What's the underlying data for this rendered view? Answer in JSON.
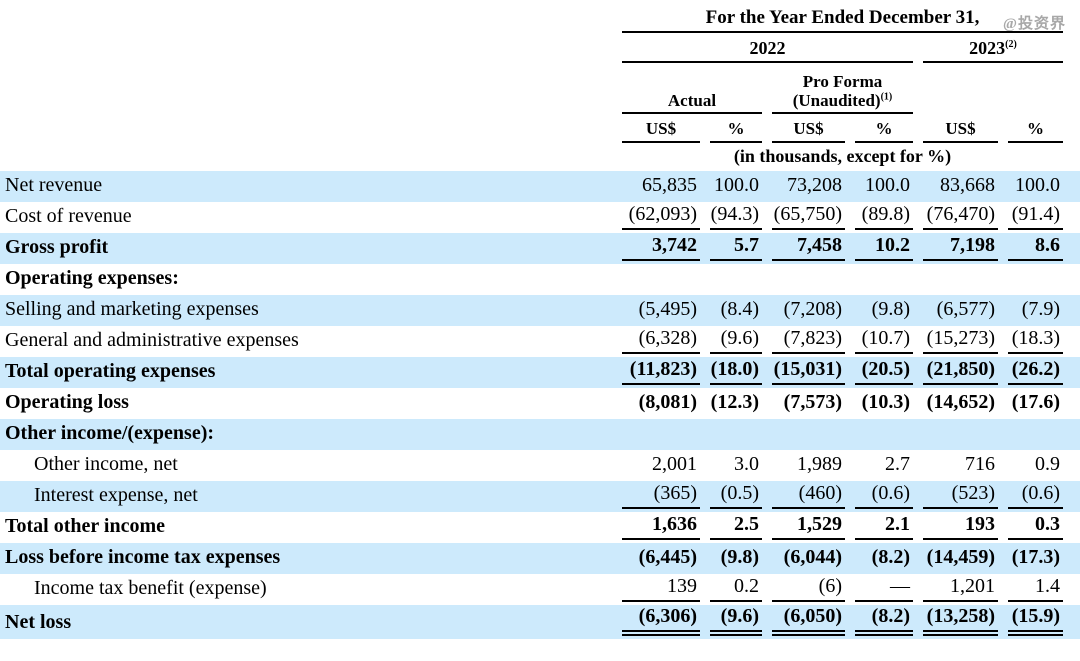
{
  "watermark": "@投资界",
  "table": {
    "title": "For the Year Ended December 31,",
    "year_groups": [
      {
        "label": "2022",
        "sup": ""
      },
      {
        "label": "2023",
        "sup": "(2)"
      }
    ],
    "subgroups": [
      {
        "line1": "Actual",
        "line2": "",
        "sup": ""
      },
      {
        "line1": "Pro Forma",
        "line2": "(Unaudited)",
        "sup": "(1)"
      }
    ],
    "unit_headers": [
      "US$",
      "%",
      "US$",
      "%",
      "US$",
      "%"
    ],
    "units_note": "(in thousands, except for %)",
    "rows": [
      {
        "label": "Net revenue",
        "bold": false,
        "indent": false,
        "shaded": true,
        "underline": "none",
        "values": [
          "65,835",
          "100.0",
          "73,208",
          "100.0",
          "83,668",
          "100.0"
        ]
      },
      {
        "label": "Cost of revenue",
        "bold": false,
        "indent": false,
        "shaded": false,
        "underline": "single",
        "values": [
          "(62,093)",
          "(94.3)",
          "(65,750)",
          "(89.8)",
          "(76,470)",
          "(91.4)"
        ]
      },
      {
        "label": "Gross profit",
        "bold": true,
        "indent": false,
        "shaded": true,
        "underline": "single",
        "values": [
          "3,742",
          "5.7",
          "7,458",
          "10.2",
          "7,198",
          "8.6"
        ]
      },
      {
        "label": "Operating expenses:",
        "bold": true,
        "indent": false,
        "shaded": false,
        "underline": "none",
        "values": [
          "",
          "",
          "",
          "",
          "",
          ""
        ]
      },
      {
        "label": "Selling and marketing expenses",
        "bold": false,
        "indent": false,
        "shaded": true,
        "underline": "none",
        "values": [
          "(5,495)",
          "(8.4)",
          "(7,208)",
          "(9.8)",
          "(6,577)",
          "(7.9)"
        ]
      },
      {
        "label": "General and administrative expenses",
        "bold": false,
        "indent": false,
        "shaded": false,
        "underline": "single",
        "values": [
          "(6,328)",
          "(9.6)",
          "(7,823)",
          "(10.7)",
          "(15,273)",
          "(18.3)"
        ]
      },
      {
        "label": "Total operating expenses",
        "bold": true,
        "indent": false,
        "shaded": true,
        "underline": "single",
        "values": [
          "(11,823)",
          "(18.0)",
          "(15,031)",
          "(20.5)",
          "(21,850)",
          "(26.2)"
        ]
      },
      {
        "label": "Operating loss",
        "bold": true,
        "indent": false,
        "shaded": false,
        "underline": "none",
        "values": [
          "(8,081)",
          "(12.3)",
          "(7,573)",
          "(10.3)",
          "(14,652)",
          "(17.6)"
        ]
      },
      {
        "label": "Other income/(expense):",
        "bold": true,
        "indent": false,
        "shaded": true,
        "underline": "none",
        "values": [
          "",
          "",
          "",
          "",
          "",
          ""
        ]
      },
      {
        "label": "Other income, net",
        "bold": false,
        "indent": true,
        "shaded": false,
        "underline": "none",
        "values": [
          "2,001",
          "3.0",
          "1,989",
          "2.7",
          "716",
          "0.9"
        ]
      },
      {
        "label": "Interest expense, net",
        "bold": false,
        "indent": true,
        "shaded": true,
        "underline": "single",
        "values": [
          "(365)",
          "(0.5)",
          "(460)",
          "(0.6)",
          "(523)",
          "(0.6)"
        ]
      },
      {
        "label": "Total other income",
        "bold": true,
        "indent": false,
        "shaded": false,
        "underline": "single",
        "values": [
          "1,636",
          "2.5",
          "1,529",
          "2.1",
          "193",
          "0.3"
        ]
      },
      {
        "label": "Loss before income tax expenses",
        "bold": true,
        "indent": false,
        "shaded": true,
        "underline": "none",
        "values": [
          "(6,445)",
          "(9.8)",
          "(6,044)",
          "(8.2)",
          "(14,459)",
          "(17.3)"
        ]
      },
      {
        "label": "Income tax benefit (expense)",
        "bold": false,
        "indent": true,
        "shaded": false,
        "underline": "single",
        "values": [
          "139",
          "0.2",
          "(6)",
          "—",
          "1,201",
          "1.4"
        ]
      },
      {
        "label": "Net loss",
        "bold": true,
        "indent": false,
        "shaded": true,
        "underline": "double",
        "values": [
          "(6,306)",
          "(9.6)",
          "(6,050)",
          "(8.2)",
          "(13,258)",
          "(15.9)"
        ]
      }
    ]
  }
}
